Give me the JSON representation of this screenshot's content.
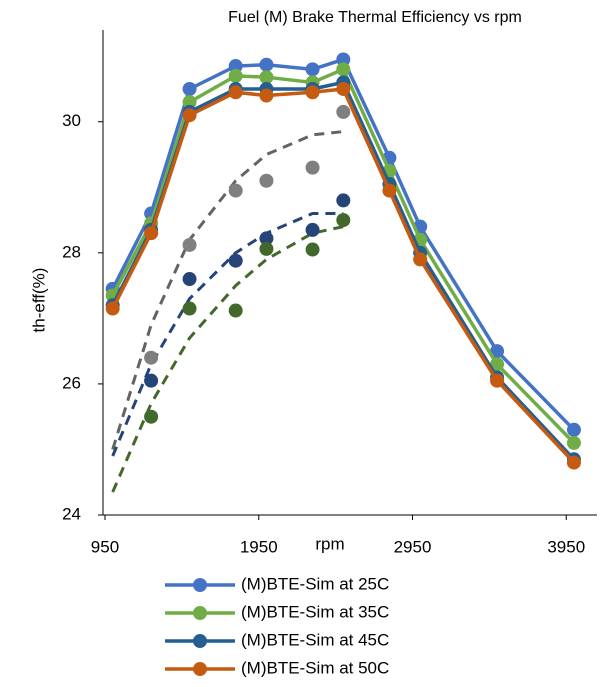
{
  "chart_data": {
    "type": "line",
    "title": "Fuel (M) Brake Thermal Efficiency vs rpm",
    "x_label": "rpm",
    "y_label": "th-eff(%)",
    "x": [
      1000,
      1250,
      1500,
      1800,
      2000,
      2300,
      2500,
      2800,
      3000,
      3500,
      4000
    ],
    "series": [
      {
        "name": "(M)BTE-Sim at 25C",
        "color": "#4472c4",
        "values": [
          27.45,
          28.6,
          30.5,
          30.85,
          30.87,
          30.8,
          30.95,
          29.45,
          28.4,
          26.5,
          25.3
        ]
      },
      {
        "name": "(M)BTE-Sim at 35C",
        "color": "#70ad47",
        "values": [
          27.35,
          28.45,
          30.3,
          30.7,
          30.68,
          30.6,
          30.8,
          29.25,
          28.2,
          26.3,
          25.1
        ]
      },
      {
        "name": "(M)BTE-Sim at 45C",
        "color": "#255e91",
        "values": [
          27.2,
          28.35,
          30.15,
          30.5,
          30.5,
          30.5,
          30.6,
          29.05,
          28.0,
          26.1,
          24.85
        ]
      },
      {
        "name": "(M)BTE-Sim at 50C",
        "color": "#c55a11",
        "values": [
          27.15,
          28.3,
          30.1,
          30.45,
          30.4,
          30.45,
          30.5,
          28.95,
          27.9,
          26.05,
          24.8
        ]
      }
    ],
    "scatter_series": [
      {
        "color": "#7f7f7f",
        "x": [
          1250,
          1500,
          1800,
          2000,
          2300,
          2500
        ],
        "values": [
          26.4,
          28.12,
          28.95,
          29.1,
          29.3,
          30.15
        ]
      },
      {
        "color": "#264478",
        "x": [
          1250,
          1500,
          1800,
          2000,
          2300,
          2500
        ],
        "values": [
          26.05,
          27.6,
          27.88,
          28.22,
          28.35,
          28.8
        ]
      },
      {
        "color": "#43682b",
        "x": [
          1250,
          1500,
          1800,
          2000,
          2300,
          2500
        ],
        "values": [
          25.5,
          27.15,
          27.12,
          28.06,
          28.05,
          28.5
        ]
      }
    ],
    "trend_series": [
      {
        "color": "#636363",
        "x": [
          1000,
          1250,
          1500,
          1800,
          2000,
          2300,
          2500
        ],
        "values": [
          25.0,
          26.9,
          28.2,
          29.1,
          29.5,
          29.8,
          29.85
        ]
      },
      {
        "color": "#264478",
        "x": [
          1000,
          1250,
          1500,
          1800,
          2000,
          2300,
          2500
        ],
        "values": [
          24.9,
          26.3,
          27.3,
          28.0,
          28.3,
          28.6,
          28.6
        ]
      },
      {
        "color": "#43682b",
        "x": [
          1000,
          1250,
          1500,
          1800,
          2000,
          2300,
          2500
        ],
        "values": [
          24.35,
          25.7,
          26.7,
          27.5,
          27.9,
          28.3,
          28.4
        ]
      }
    ],
    "xlim": [
      937,
      4150
    ],
    "ylim": [
      24,
      31.4
    ],
    "xticks": [
      950,
      1950,
      2950,
      3950
    ],
    "yticks": [
      24,
      26,
      28,
      30
    ]
  }
}
